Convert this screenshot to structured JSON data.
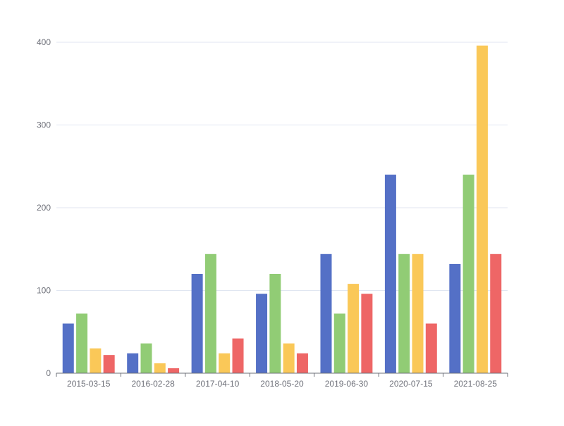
{
  "chart_data": {
    "type": "bar",
    "categories": [
      "2015-03-15",
      "2016-02-28",
      "2017-04-10",
      "2018-05-20",
      "2019-06-30",
      "2020-07-15",
      "2021-08-25"
    ],
    "series": [
      {
        "values": [
          60,
          24,
          120,
          96,
          144,
          240,
          132
        ],
        "color": "#5470c6"
      },
      {
        "values": [
          72,
          36,
          144,
          120,
          72,
          144,
          240
        ],
        "color": "#91cc75"
      },
      {
        "values": [
          30,
          12,
          24,
          36,
          108,
          144,
          396
        ],
        "color": "#fac858"
      },
      {
        "values": [
          22,
          6,
          42,
          24,
          96,
          60,
          144
        ],
        "color": "#ee6666"
      }
    ],
    "ylim": [
      0,
      400
    ],
    "yticks": [
      0,
      100,
      200,
      300,
      400
    ],
    "grid": true,
    "legend": "none"
  }
}
